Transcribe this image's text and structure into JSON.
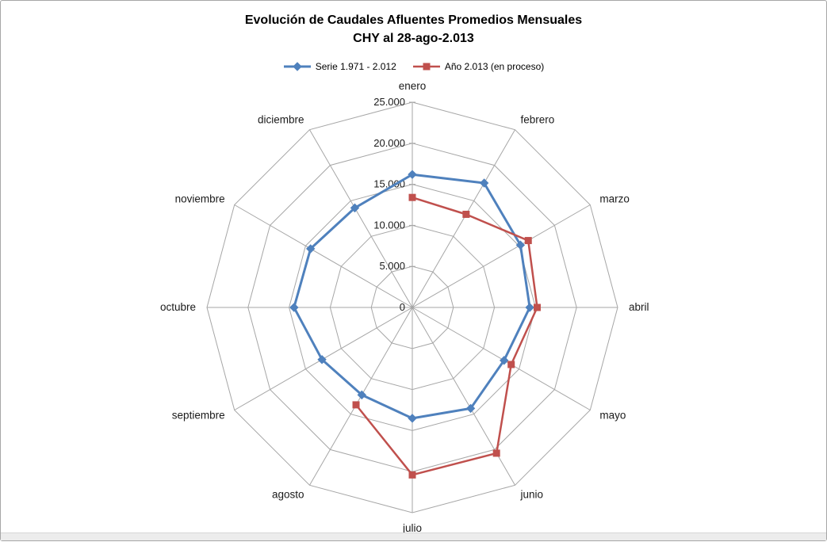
{
  "title": {
    "line1": "Evolución de Caudales Afluentes Promedios Mensuales",
    "line2": "CHY al 28-ago-2.013"
  },
  "legend": {
    "items": [
      {
        "label": "Serie 1.971 - 2.012",
        "marker": "diamond",
        "color": "#4F81BD"
      },
      {
        "label": "Año 2.013 (en proceso)",
        "marker": "square",
        "color": "#C0504D"
      }
    ],
    "position": "top"
  },
  "chart_data": {
    "type": "radar",
    "title": "Evolución de Caudales Afluentes Promedios Mensuales",
    "subtitle": "CHY al 28-ago-2.013",
    "categories": [
      "enero",
      "febrero",
      "marzo",
      "abril",
      "mayo",
      "junio",
      "julio",
      "agosto",
      "septiembre",
      "octubre",
      "noviembre",
      "diciembre"
    ],
    "series": [
      {
        "name": "Serie 1.971 - 2.012",
        "color": "#4F81BD",
        "marker": "diamond",
        "values": [
          16200,
          17500,
          15200,
          14300,
          12900,
          14200,
          13500,
          12300,
          12700,
          14400,
          14300,
          14000
        ]
      },
      {
        "name": "Año 2.013 (en proceso)",
        "color": "#C0504D",
        "marker": "square",
        "values": [
          13400,
          13100,
          16300,
          15200,
          13900,
          20500,
          20400,
          13700,
          null,
          null,
          null,
          null
        ]
      }
    ],
    "radial_axis": {
      "min": 0,
      "max": 25000,
      "step": 5000,
      "tick_labels": [
        "0",
        "5.000",
        "10.000",
        "15.000",
        "20.000",
        "25.000"
      ]
    },
    "grid": {
      "color": "#A6A6A6",
      "rings": 5,
      "spokes": 12
    },
    "legend_position": "top"
  }
}
